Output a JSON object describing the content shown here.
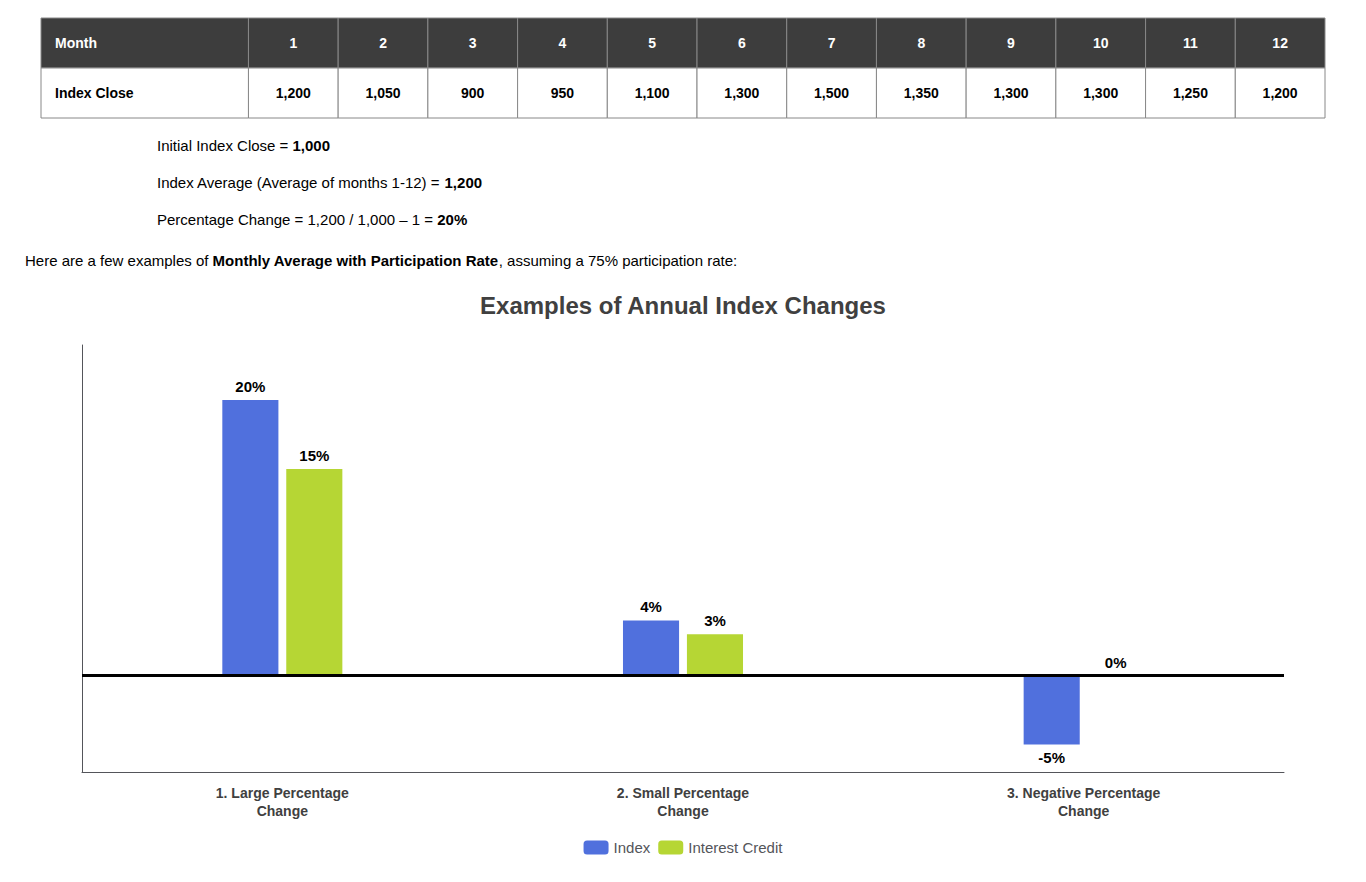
{
  "chart_data": {
    "type": "bar",
    "title": "Examples of Annual Index Changes",
    "categories": [
      "1. Large Percentage\nChange",
      "2. Small Percentage\nChange",
      "3. Negative Percentage\nChange"
    ],
    "series": [
      {
        "name": "Index",
        "values": [
          20,
          4,
          -5
        ],
        "value_labels": [
          "20%",
          "4%",
          "-5%"
        ]
      },
      {
        "name": "Interest Credit",
        "values": [
          15,
          3,
          0
        ],
        "value_labels": [
          "15%",
          "3%",
          "0%"
        ]
      }
    ],
    "ylim": [
      -7,
      24
    ],
    "tick_labels": "x",
    "grid": false,
    "legend": "bottom",
    "data_labels": true,
    "table": {
      "columns": [
        "Month",
        "1",
        "2",
        "3",
        "4",
        "5",
        "6",
        "7",
        "8",
        "9",
        "10",
        "11",
        "12"
      ],
      "rows": [
        [
          "Index Close",
          "1,200",
          "1,050",
          "900",
          "950",
          "1,100",
          "1,300",
          "1,500",
          "1,350",
          "1,300",
          "1,300",
          "1,250",
          "1,200"
        ]
      ]
    },
    "annotations": [
      [
        "Initial Index Close = ",
        "1,000"
      ],
      [
        "Index Average (Average of months 1-12) = ",
        "1,200"
      ],
      [
        "Percentage Change = 1,200 / 1,000 – 1 = ",
        "20%"
      ]
    ],
    "intro": [
      "Here are a few examples of ",
      "Monthly Average with Participation Rate",
      ", assuming a 75% participation rate:"
    ]
  }
}
